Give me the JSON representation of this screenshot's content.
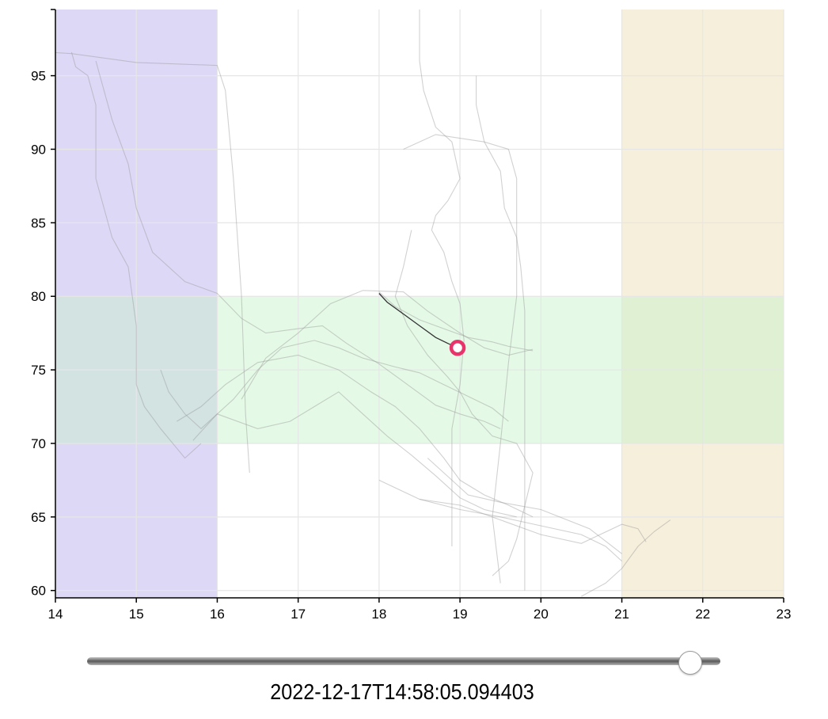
{
  "chart_data": {
    "type": "line",
    "title": "",
    "xlabel": "",
    "ylabel": "",
    "xlim": [
      14,
      23
    ],
    "ylim": [
      59.5,
      99.5
    ],
    "x_ticks": [
      14,
      15,
      16,
      17,
      18,
      19,
      20,
      21,
      22,
      23
    ],
    "y_ticks": [
      60,
      65,
      70,
      75,
      80,
      85,
      90,
      95
    ],
    "grid": true,
    "bands": [
      {
        "name": "x-band-left",
        "axis": "x",
        "from": 14,
        "to": 16,
        "color": "#ded8f7"
      },
      {
        "name": "x-band-right",
        "axis": "x",
        "from": 21,
        "to": 23,
        "color": "#f6efdc"
      },
      {
        "name": "y-band-comfort",
        "axis": "y",
        "from": 70,
        "to": 80,
        "color": "#c4f2c8",
        "opacity": 0.45
      }
    ],
    "series": [
      {
        "points": [
          [
            13.6,
            96.7
          ],
          [
            14.2,
            96.5
          ],
          [
            15.0,
            95.9
          ],
          [
            16.0,
            95.7
          ],
          [
            16.1,
            94.0
          ],
          [
            16.2,
            88.0
          ],
          [
            16.3,
            80.0
          ],
          [
            16.35,
            72.0
          ],
          [
            16.4,
            68.0
          ]
        ]
      },
      {
        "points": [
          [
            14.2,
            96.6
          ],
          [
            14.25,
            95.6
          ],
          [
            14.4,
            95.0
          ],
          [
            14.5,
            93.0
          ],
          [
            14.5,
            88.0
          ],
          [
            14.7,
            84.0
          ],
          [
            14.9,
            82.0
          ],
          [
            15.0,
            78.0
          ],
          [
            15.0,
            74.0
          ],
          [
            15.1,
            72.5
          ],
          [
            15.3,
            71.0
          ],
          [
            15.6,
            69.0
          ],
          [
            15.8,
            70.0
          ]
        ]
      },
      {
        "points": [
          [
            14.5,
            96.0
          ],
          [
            14.7,
            92.0
          ],
          [
            14.9,
            89.0
          ],
          [
            15.0,
            86.0
          ],
          [
            15.2,
            83.0
          ],
          [
            15.6,
            81.0
          ],
          [
            16.0,
            80.2
          ],
          [
            16.3,
            78.5
          ],
          [
            16.6,
            77.5
          ],
          [
            17.0,
            77.8
          ],
          [
            17.3,
            78.0
          ],
          [
            17.6,
            76.8
          ],
          [
            18.0,
            75.4
          ],
          [
            18.3,
            74.2
          ],
          [
            18.7,
            72.6
          ],
          [
            19.0,
            72.0
          ],
          [
            19.3,
            71.5
          ],
          [
            19.5,
            71.0
          ]
        ]
      },
      {
        "points": [
          [
            15.3,
            75.0
          ],
          [
            15.4,
            73.5
          ],
          [
            15.6,
            72.0
          ],
          [
            15.8,
            71.0
          ],
          [
            16.0,
            72.0
          ],
          [
            16.2,
            73.0
          ],
          [
            16.5,
            75.0
          ],
          [
            16.8,
            76.5
          ],
          [
            17.2,
            77.0
          ],
          [
            17.5,
            76.5
          ],
          [
            17.8,
            75.8
          ],
          [
            18.2,
            75.2
          ],
          [
            18.5,
            74.8
          ],
          [
            18.8,
            74.0
          ],
          [
            19.1,
            73.2
          ],
          [
            19.4,
            72.4
          ],
          [
            19.6,
            71.5
          ]
        ]
      },
      {
        "points": [
          [
            15.5,
            71.5
          ],
          [
            15.8,
            72.5
          ],
          [
            16.1,
            74.0
          ],
          [
            16.5,
            75.5
          ],
          [
            17.0,
            76.0
          ],
          [
            17.5,
            75.0
          ],
          [
            17.9,
            73.5
          ],
          [
            18.2,
            72.5
          ],
          [
            18.5,
            71.0
          ],
          [
            18.8,
            69.0
          ],
          [
            19.0,
            67.5
          ],
          [
            19.3,
            66.5
          ],
          [
            19.6,
            65.8
          ],
          [
            19.9,
            65.0
          ]
        ]
      },
      {
        "points": [
          [
            15.7,
            70.2
          ],
          [
            16.0,
            72.0
          ],
          [
            16.5,
            71.0
          ],
          [
            16.9,
            71.5
          ],
          [
            17.2,
            72.5
          ],
          [
            17.5,
            73.5
          ],
          [
            17.8,
            72.0
          ],
          [
            18.1,
            70.5
          ],
          [
            18.4,
            69.2
          ],
          [
            18.7,
            67.8
          ],
          [
            19.0,
            66.3
          ],
          [
            19.3,
            65.5
          ],
          [
            19.7,
            65.0
          ]
        ]
      },
      {
        "points": [
          [
            16.3,
            73.0
          ],
          [
            16.6,
            75.8
          ],
          [
            17.0,
            77.5
          ],
          [
            17.4,
            79.5
          ],
          [
            17.8,
            80.4
          ],
          [
            18.3,
            80.3
          ],
          [
            18.6,
            79.0
          ],
          [
            19.0,
            77.5
          ],
          [
            19.3,
            76.5
          ],
          [
            19.6,
            76.0
          ],
          [
            19.9,
            76.4
          ]
        ]
      },
      {
        "points": [
          [
            18.0,
            67.5
          ],
          [
            18.5,
            66.2
          ],
          [
            19.0,
            65.5
          ],
          [
            19.5,
            65.0
          ],
          [
            20.0,
            64.4
          ],
          [
            20.5,
            63.8
          ],
          [
            20.8,
            63.0
          ],
          [
            21.0,
            62.0
          ]
        ]
      },
      {
        "points": [
          [
            18.5,
            66.2
          ],
          [
            19.0,
            65.8
          ],
          [
            19.5,
            64.8
          ],
          [
            20.0,
            63.8
          ],
          [
            20.5,
            63.2
          ],
          [
            21.0,
            64.5
          ],
          [
            21.2,
            64.2
          ],
          [
            21.3,
            63.3
          ]
        ]
      },
      {
        "points": [
          [
            18.5,
            99.5
          ],
          [
            18.5,
            96.0
          ],
          [
            18.55,
            94.0
          ],
          [
            18.7,
            91.5
          ],
          [
            18.9,
            90.5
          ],
          [
            19.0,
            88.0
          ],
          [
            18.85,
            86.5
          ],
          [
            18.7,
            85.5
          ],
          [
            18.65,
            84.5
          ],
          [
            18.8,
            83.0
          ],
          [
            18.9,
            81.0
          ],
          [
            19.0,
            79.5
          ],
          [
            19.05,
            77.0
          ],
          [
            19.0,
            74.0
          ],
          [
            18.9,
            71.0
          ],
          [
            18.9,
            68.0
          ],
          [
            18.9,
            63.0
          ]
        ]
      },
      {
        "points": [
          [
            19.2,
            95.0
          ],
          [
            19.2,
            93.0
          ],
          [
            19.3,
            90.5
          ],
          [
            19.5,
            88.5
          ],
          [
            19.55,
            86.0
          ],
          [
            19.7,
            84.0
          ],
          [
            19.75,
            82.0
          ],
          [
            19.8,
            79.0
          ],
          [
            19.8,
            75.0
          ],
          [
            19.8,
            70.0
          ],
          [
            19.8,
            64.0
          ],
          [
            19.8,
            60.0
          ]
        ]
      },
      {
        "points": [
          [
            18.3,
            90.0
          ],
          [
            18.7,
            91.0
          ],
          [
            19.3,
            90.5
          ],
          [
            19.6,
            90.0
          ],
          [
            19.7,
            88.0
          ],
          [
            19.7,
            80.0
          ],
          [
            19.6,
            75.5
          ],
          [
            19.5,
            70.0
          ],
          [
            19.4,
            65.0
          ],
          [
            19.5,
            60.5
          ]
        ]
      },
      {
        "points": [
          [
            18.4,
            84.5
          ],
          [
            18.3,
            82.0
          ],
          [
            18.2,
            80.0
          ],
          [
            18.35,
            78.0
          ],
          [
            18.6,
            76.0
          ],
          [
            18.85,
            74.5
          ],
          [
            19.0,
            73.5
          ],
          [
            19.15,
            72.0
          ],
          [
            19.4,
            70.5
          ],
          [
            19.7,
            70.0
          ],
          [
            19.9,
            68.0
          ],
          [
            19.7,
            63.5
          ],
          [
            19.6,
            62.0
          ],
          [
            19.4,
            61.0
          ]
        ]
      },
      {
        "points": [
          [
            18.6,
            69.0
          ],
          [
            18.9,
            67.5
          ],
          [
            19.1,
            66.5
          ],
          [
            19.5,
            66.0
          ],
          [
            20.0,
            65.5
          ],
          [
            20.6,
            64.2
          ],
          [
            21.0,
            62.5
          ]
        ]
      },
      {
        "points": [
          [
            20.5,
            59.6
          ],
          [
            20.8,
            60.5
          ],
          [
            21.0,
            61.5
          ],
          [
            21.2,
            63.0
          ],
          [
            21.4,
            64.0
          ],
          [
            21.6,
            64.8
          ]
        ]
      },
      {
        "points": [
          [
            18.0,
            80.3
          ],
          [
            18.2,
            79.3
          ],
          [
            18.5,
            78.4
          ],
          [
            18.8,
            77.8
          ],
          [
            19.1,
            77.2
          ],
          [
            19.4,
            76.9
          ],
          [
            19.6,
            76.6
          ],
          [
            19.9,
            76.3
          ]
        ]
      }
    ],
    "active_series": {
      "points": [
        [
          18.0,
          80.2
        ],
        [
          18.1,
          79.6
        ],
        [
          18.3,
          78.8
        ],
        [
          18.5,
          78.0
        ],
        [
          18.7,
          77.2
        ],
        [
          18.85,
          76.8
        ],
        [
          18.97,
          76.5
        ]
      ]
    },
    "marker": {
      "x": 18.97,
      "y": 76.5,
      "color": "#e8336b"
    }
  },
  "slider": {
    "position": 0.97
  },
  "timestamp": "2022-12-17T14:58:05.094403"
}
